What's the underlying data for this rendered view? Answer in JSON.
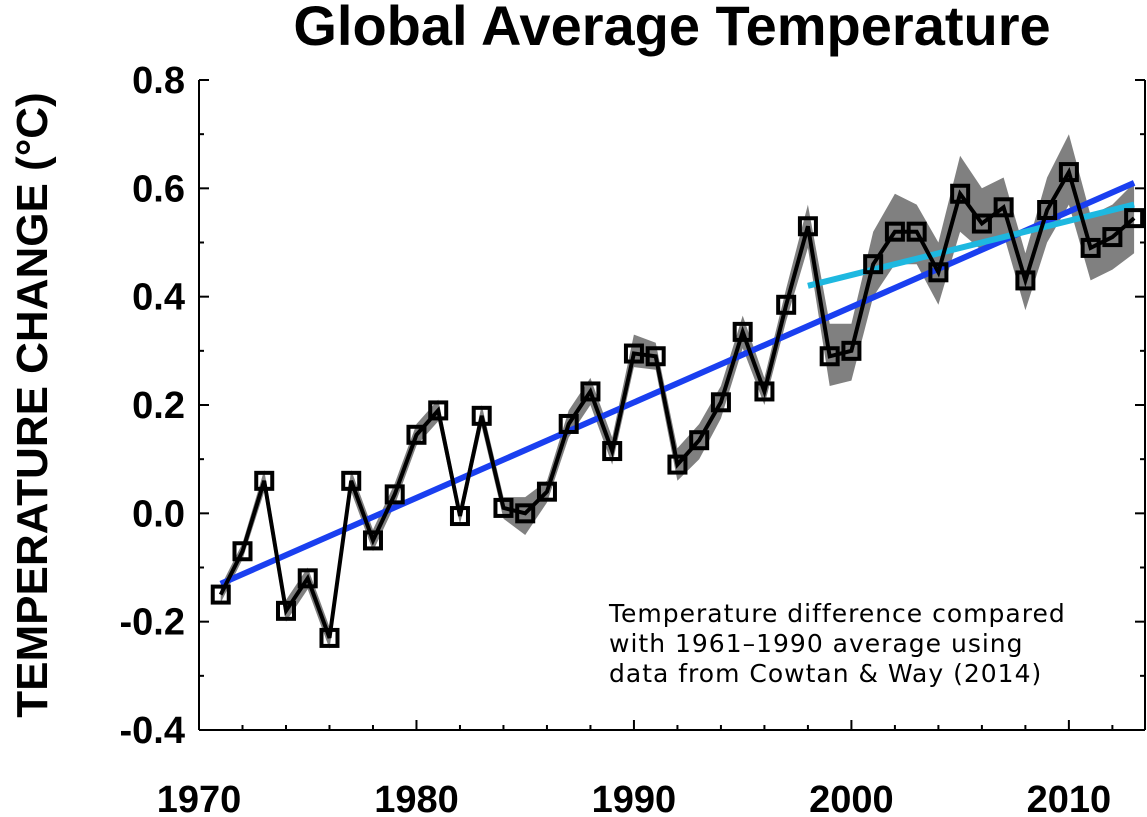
{
  "chart_data": {
    "type": "line",
    "title": "Global Average Temperature",
    "ylabel": "TEMPERATURE CHANGE (°C)",
    "xlabel": "",
    "xlim": [
      1970,
      2013.5
    ],
    "ylim": [
      -0.4,
      0.8
    ],
    "x_ticks": [
      1970,
      1980,
      1990,
      2000,
      2010
    ],
    "x_tick_labels": [
      "1970",
      "1980",
      "1990",
      "2000",
      "2010"
    ],
    "y_ticks": [
      -0.4,
      -0.2,
      0.0,
      0.2,
      0.4,
      0.6,
      0.8
    ],
    "y_tick_labels": [
      "-0.4",
      "-0.2",
      "0.0",
      "0.2",
      "0.4",
      "0.6",
      "0.8"
    ],
    "annotation": [
      "Temperature difference compared",
      "with 1961–1990 average using",
      "data from Cowtan & Way (2014)"
    ],
    "series": [
      {
        "style": "line-square-markers",
        "color": "#000000",
        "x": [
          1971,
          1972,
          1973,
          1974,
          1975,
          1976,
          1977,
          1978,
          1979,
          1980,
          1981,
          1982,
          1983,
          1984,
          1985,
          1986,
          1987,
          1988,
          1989,
          1990,
          1991,
          1992,
          1993,
          1994,
          1995,
          1996,
          1997,
          1998,
          1999,
          2000,
          2001,
          2002,
          2003,
          2004,
          2005,
          2006,
          2007,
          2008,
          2009,
          2010,
          2011,
          2012,
          2013
        ],
        "y": [
          -0.15,
          -0.07,
          0.06,
          -0.18,
          -0.12,
          -0.23,
          0.06,
          -0.05,
          0.035,
          0.145,
          0.19,
          -0.005,
          0.18,
          0.01,
          0.0,
          0.04,
          0.165,
          0.225,
          0.115,
          0.295,
          0.29,
          0.09,
          0.135,
          0.205,
          0.335,
          0.225,
          0.385,
          0.53,
          0.29,
          0.3,
          0.46,
          0.52,
          0.52,
          0.445,
          0.59,
          0.535,
          0.565,
          0.43,
          0.56,
          0.63,
          0.49,
          0.51,
          0.545
        ]
      },
      {
        "style": "uncertainty-band",
        "color": "#808080",
        "x": [
          1971,
          1972,
          1973,
          1974,
          1975,
          1976,
          1977,
          1978,
          1979,
          1980,
          1981,
          1982,
          1983,
          1984,
          1985,
          1986,
          1987,
          1988,
          1989,
          1990,
          1991,
          1992,
          1993,
          1994,
          1995,
          1996,
          1997,
          1998,
          1999,
          2000,
          2001,
          2002,
          2003,
          2004,
          2005,
          2006,
          2007,
          2008,
          2009,
          2010,
          2011,
          2012,
          2013
        ],
        "lower": [
          -0.165,
          -0.085,
          0.04,
          -0.2,
          -0.14,
          -0.25,
          0.04,
          -0.07,
          0.015,
          0.125,
          0.17,
          -0.02,
          0.16,
          -0.01,
          -0.04,
          0.02,
          0.14,
          0.2,
          0.09,
          0.27,
          0.265,
          0.06,
          0.1,
          0.175,
          0.305,
          0.2,
          0.355,
          0.49,
          0.235,
          0.245,
          0.4,
          0.46,
          0.46,
          0.385,
          0.52,
          0.485,
          0.515,
          0.375,
          0.5,
          0.57,
          0.43,
          0.45,
          0.48
        ],
        "upper": [
          -0.135,
          -0.055,
          0.08,
          -0.16,
          -0.1,
          -0.21,
          0.08,
          -0.03,
          0.055,
          0.165,
          0.21,
          0.01,
          0.2,
          0.03,
          0.03,
          0.06,
          0.19,
          0.25,
          0.14,
          0.33,
          0.315,
          0.12,
          0.165,
          0.235,
          0.365,
          0.25,
          0.415,
          0.57,
          0.35,
          0.35,
          0.52,
          0.59,
          0.57,
          0.5,
          0.66,
          0.6,
          0.62,
          0.48,
          0.62,
          0.7,
          0.55,
          0.57,
          0.61
        ]
      },
      {
        "style": "trend",
        "color": "#1a3ff0",
        "x": [
          1971,
          2013
        ],
        "y": [
          -0.13,
          0.61
        ]
      },
      {
        "style": "trend",
        "color": "#1eb8e0",
        "x": [
          1998,
          2013
        ],
        "y": [
          0.42,
          0.57
        ]
      }
    ]
  }
}
